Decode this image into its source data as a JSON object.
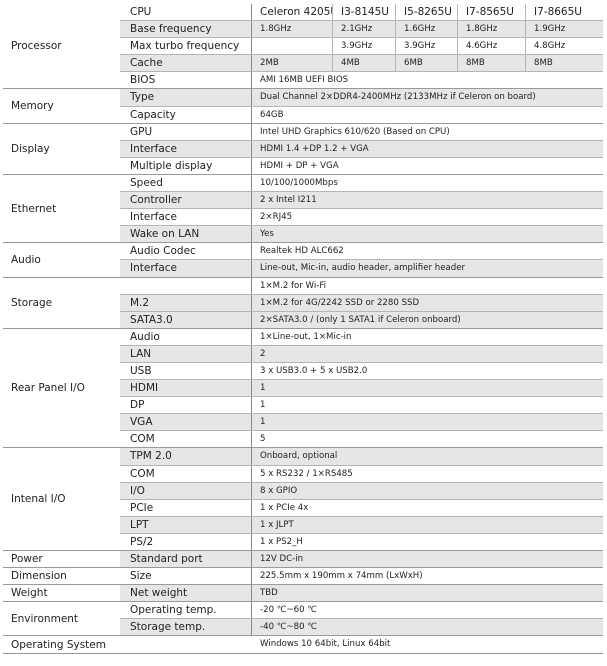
{
  "groups": [
    {
      "name": "Processor",
      "rows": [
        {
          "label": "CPU",
          "cells": [
            "Celeron 4205U",
            "I3-8145U",
            "I5-8265U",
            "I7-8565U",
            "I7-8665U"
          ],
          "header": true
        },
        {
          "label": "Base frequency",
          "cells": [
            "1.8GHz",
            "2.1GHz",
            "1.6GHz",
            "1.8GHz",
            "1.9GHz"
          ],
          "shade": true
        },
        {
          "label": "Max turbo frequency",
          "cells": [
            "",
            "3.9GHz",
            "3.9GHz",
            "4.6GHz",
            "4.8GHz"
          ]
        },
        {
          "label": "Cache",
          "cells": [
            "2MB",
            "4MB",
            "6MB",
            "8MB",
            "8MB"
          ],
          "shade": true
        },
        {
          "label": "BIOS",
          "value": "AMI 16MB UEFI BIOS"
        }
      ]
    },
    {
      "name": "Memory",
      "rows": [
        {
          "label": "Type",
          "value": "Dual Channel 2×DDR4-2400MHz (2133MHz if Celeron on board)",
          "shade": true
        },
        {
          "label": "Capacity",
          "value": "64GB"
        }
      ]
    },
    {
      "name": "Display",
      "rows": [
        {
          "label": "GPU",
          "value": "Intel UHD Graphics 610/620 (Based on CPU)"
        },
        {
          "label": "Interface",
          "value": "HDMI 1.4 +DP 1.2 + VGA",
          "shade": true
        },
        {
          "label": "Multiple display",
          "value": "HDMI + DP + VGA"
        }
      ]
    },
    {
      "name": "Ethernet",
      "rows": [
        {
          "label": "Speed",
          "value": "10/100/1000Mbps"
        },
        {
          "label": "Controller",
          "value": "2 x Intel I211",
          "shade": true
        },
        {
          "label": "Interface",
          "value": "2×RJ45"
        },
        {
          "label": "Wake on LAN",
          "value": "Yes",
          "shade": true
        }
      ]
    },
    {
      "name": "Audio",
      "rows": [
        {
          "label": "Audio Codec",
          "value": "Realtek HD ALC662"
        },
        {
          "label": "Interface",
          "value": "Line-out, Mic-in, audio header, amplifier header",
          "shade": true
        }
      ]
    },
    {
      "name": "Storage",
      "rows": [
        {
          "label": "",
          "value": "1×M.2 for Wi-Fi"
        },
        {
          "label": "M.2",
          "value": "1×M.2 for 4G/2242 SSD or 2280 SSD",
          "shade": true
        },
        {
          "label": "SATA3.0",
          "value": "2×SATA3.0 / (only 1 SATA1 if Celeron onboard)",
          "shade": true
        }
      ]
    },
    {
      "name": "Rear Panel I/O",
      "rows": [
        {
          "label": "Audio",
          "value": "1×Line-out, 1×Mic-in"
        },
        {
          "label": "LAN",
          "value": "2",
          "shade": true
        },
        {
          "label": "USB",
          "value": "3 x USB3.0 + 5 x USB2.0"
        },
        {
          "label": "HDMI",
          "value": "1",
          "shade": true
        },
        {
          "label": "DP",
          "value": "1"
        },
        {
          "label": "VGA",
          "value": "1",
          "shade": true
        },
        {
          "label": "COM",
          "value": "5"
        }
      ]
    },
    {
      "name": "Intenal I/O",
      "rows": [
        {
          "label": "TPM 2.0",
          "value": "Onboard, optional",
          "shade": true
        },
        {
          "label": "COM",
          "value": "5 x RS232 / 1×RS485"
        },
        {
          "label": "I/O",
          "value": "8 x GPIO",
          "shade": true
        },
        {
          "label": "PCIe",
          "value": "1 x PCIe 4x"
        },
        {
          "label": "LPT",
          "value": "1 x JLPT",
          "shade": true
        },
        {
          "label": "PS/2",
          "value": "1 x PS2_H"
        }
      ]
    },
    {
      "name": "Power",
      "rows": [
        {
          "label": "Standard port",
          "value": "12V DC-in",
          "shade": true
        }
      ]
    },
    {
      "name": "Dimension",
      "rows": [
        {
          "label": "Size",
          "value": "225.5mm x 190mm x 74mm (LxWxH)"
        }
      ]
    },
    {
      "name": "Weight",
      "rows": [
        {
          "label": "Net weight",
          "value": "TBD",
          "shade": true
        }
      ]
    },
    {
      "name": "Environment",
      "rows": [
        {
          "label": "Operating temp.",
          "value": "-20 ℃~60 ℃"
        },
        {
          "label": "Storage temp.",
          "value": "-40 ℃~80 ℃",
          "shade": true
        }
      ]
    },
    {
      "name": "Operating System",
      "rows": [
        {
          "label": "",
          "value": "Windows 10 64bit, Linux 64bit"
        }
      ]
    }
  ]
}
